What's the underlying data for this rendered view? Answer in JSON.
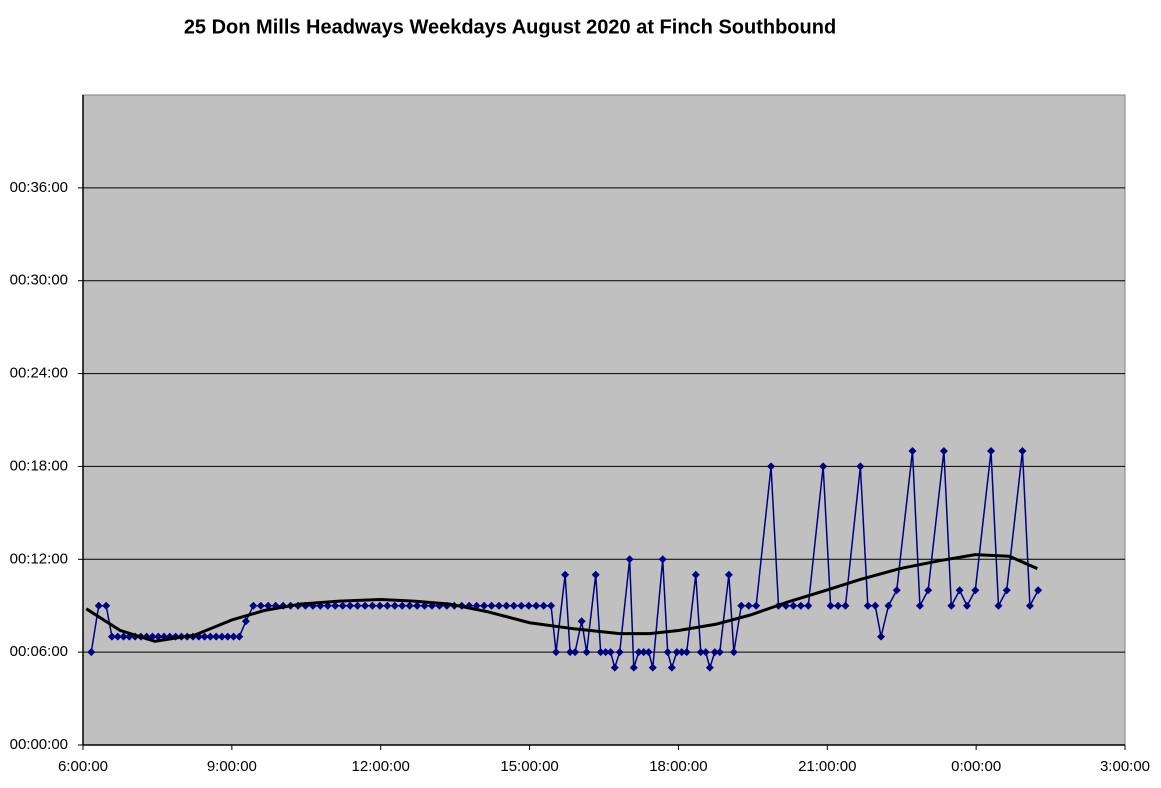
{
  "chart_data": {
    "type": "line",
    "title": "25 Don Mills Headways Weekdays August 2020 at Finch Southbound",
    "x": [
      370,
      379,
      388,
      395,
      402,
      409,
      416,
      423,
      430,
      437,
      444,
      451,
      458,
      465,
      472,
      479,
      486,
      493,
      500,
      507,
      514,
      521,
      528,
      535,
      542,
      549,
      557,
      566,
      575,
      584,
      593,
      602,
      611,
      620,
      629,
      638,
      647,
      656,
      665,
      674,
      683,
      692,
      701,
      710,
      719,
      728,
      737,
      746,
      755,
      764,
      773,
      782,
      791,
      800,
      809,
      818,
      827,
      836,
      845,
      854,
      863,
      872,
      881,
      890,
      899,
      908,
      917,
      926,
      932,
      943,
      949,
      955,
      963,
      969,
      980,
      986,
      992,
      998,
      1003,
      1009,
      1021,
      1026,
      1032,
      1038,
      1044,
      1049,
      1061,
      1067,
      1072,
      1078,
      1084,
      1090,
      1101,
      1107,
      1113,
      1118,
      1124,
      1130,
      1141,
      1147,
      1156,
      1165,
      1174,
      1192,
      1201,
      1210,
      1219,
      1228,
      1237,
      1255,
      1264,
      1273,
      1282,
      1300,
      1309,
      1318,
      1325,
      1334,
      1344,
      1363,
      1372,
      1382,
      1401,
      1410,
      1420,
      1429,
      1439,
      1458,
      1467,
      1477,
      1496,
      1505,
      1515
    ],
    "series": [
      {
        "color": "#000080",
        "marker": "diamond",
        "values": [
          6,
          9,
          9,
          7,
          7,
          7,
          7,
          7,
          7,
          7,
          7,
          7,
          7,
          7,
          7,
          7,
          7,
          7,
          7,
          7,
          7,
          7,
          7,
          7,
          7,
          7,
          8,
          9,
          9,
          9,
          9,
          9,
          9,
          9,
          9,
          9,
          9,
          9,
          9,
          9,
          9,
          9,
          9,
          9,
          9,
          9,
          9,
          9,
          9,
          9,
          9,
          9,
          9,
          9,
          9,
          9,
          9,
          9,
          9,
          9,
          9,
          9,
          9,
          9,
          9,
          9,
          9,
          9,
          6,
          11,
          6,
          6,
          8,
          6,
          11,
          6,
          6,
          6,
          5,
          6,
          12,
          5,
          6,
          6,
          6,
          5,
          12,
          6,
          5,
          6,
          6,
          6,
          11,
          6,
          6,
          5,
          6,
          6,
          11,
          6,
          9,
          9,
          9,
          18,
          9,
          9,
          9,
          9,
          9,
          18,
          9,
          9,
          9,
          18,
          9,
          9,
          7,
          9,
          10,
          19,
          9,
          10,
          19,
          9,
          10,
          9,
          10,
          19,
          9,
          10,
          19,
          9,
          10
        ]
      }
    ],
    "trendline": {
      "color": "#000000",
      "x": [
        364,
        405,
        447,
        495,
        541,
        580,
        622,
        670,
        720,
        760,
        804,
        850,
        900,
        955,
        1009,
        1045,
        1080,
        1125,
        1167,
        1210,
        1259,
        1300,
        1348,
        1395,
        1439,
        1480,
        1514
      ],
      "values": [
        8.8,
        7.4,
        6.7,
        7.1,
        8.1,
        8.7,
        9.1,
        9.3,
        9.4,
        9.3,
        9.1,
        8.6,
        7.9,
        7.5,
        7.2,
        7.2,
        7.4,
        7.8,
        8.4,
        9.2,
        10.0,
        10.7,
        11.4,
        11.9,
        12.3,
        12.2,
        11.4
      ]
    },
    "xlim": [
      360,
      1620
    ],
    "xticks": [
      {
        "value": 360,
        "label": "6:00:00"
      },
      {
        "value": 540,
        "label": "9:00:00"
      },
      {
        "value": 720,
        "label": "12:00:00"
      },
      {
        "value": 900,
        "label": "15:00:00"
      },
      {
        "value": 1080,
        "label": "18:00:00"
      },
      {
        "value": 1260,
        "label": "21:00:00"
      },
      {
        "value": 1440,
        "label": "0:00:00"
      },
      {
        "value": 1620,
        "label": "3:00:00"
      }
    ],
    "ylim": [
      0,
      42
    ],
    "yticks": [
      {
        "value": 0,
        "label": "00:00:00"
      },
      {
        "value": 6,
        "label": "00:06:00"
      },
      {
        "value": 12,
        "label": "00:12:00"
      },
      {
        "value": 18,
        "label": "00:18:00"
      },
      {
        "value": 24,
        "label": "00:24:00"
      },
      {
        "value": 30,
        "label": "00:30:00"
      },
      {
        "value": 36,
        "label": "00:36:00"
      }
    ],
    "grid": true,
    "plot_background": "#c0c0c0"
  }
}
